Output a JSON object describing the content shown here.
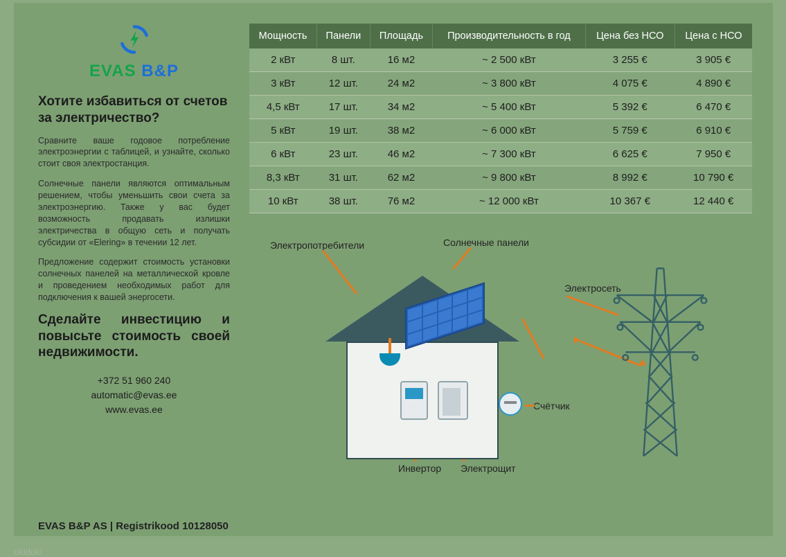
{
  "brand": {
    "part1": "EVAS",
    "part2": " B&P"
  },
  "headline": "Хотите избавиться от счетов за электричество?",
  "paragraphs": [
    "Сравните ваше годовое потребление электроэнергии с таблицей, и узнайте, сколько стоит своя электростанция.",
    "Солнечные панели являются оптимальным решением, чтобы уменьшить свои счета за электроэнергию. Также у вас будет возможность продавать излишки электричества в общую сеть и получать субсидии от «Elering» в течении 12 лет.",
    "Предложение содержит стоимость установки солнечных панелей на металлической кровле и проведением необходимых работ для подключения к вашей энергосети."
  ],
  "cta": "Сделайте инвестицию и повысьте стоимость своей недвижимости.",
  "contact": {
    "phone": "+372 51 960 240",
    "email": "automatic@evas.ee",
    "web": "www.evas.ee"
  },
  "table": {
    "headers": [
      "Мощность",
      "Панели",
      "Площадь",
      "Производительность в год",
      "Цена без НСО",
      "Цена с НСО"
    ],
    "rows": [
      [
        "2 кВт",
        "8 шт.",
        "16 м2",
        "~ 2 500 кВт",
        "3 255 €",
        "3 905 €"
      ],
      [
        "3 кВт",
        "12 шт.",
        "24 м2",
        "~ 3 800 кВт",
        "4 075 €",
        "4 890 €"
      ],
      [
        "4,5 кВт",
        "17 шт.",
        "34 м2",
        "~ 5 400 кВт",
        "5 392 €",
        "6 470 €"
      ],
      [
        "5 кВт",
        "19 шт.",
        "38 м2",
        "~ 6 000 кВт",
        "5 759 €",
        "6 910 €"
      ],
      [
        "6 кВт",
        "23 шт.",
        "46 м2",
        "~ 7 300 кВт",
        "6 625 €",
        "7 950 €"
      ],
      [
        "8,3 кВт",
        "31 шт.",
        "62 м2",
        "~ 9 800 кВт",
        "8 992 €",
        "10 790 €"
      ],
      [
        "10 кВт",
        "38 шт.",
        "76 м2",
        "~ 12 000 кВт",
        "10 367 €",
        "12 440 €"
      ]
    ]
  },
  "diagram": {
    "consumers": "Электропотребители",
    "panels": "Солнечные панели",
    "grid": "Электросеть",
    "meter": "Счётчик",
    "inverter": "Инвертор",
    "switchboard": "Электрощит"
  },
  "footer": "EVAS B&P AS | Registrikood  10128050",
  "colors": {
    "wire": "#e07b1f",
    "header_bg": "#4e6f48",
    "page_bg": "#7da073"
  }
}
